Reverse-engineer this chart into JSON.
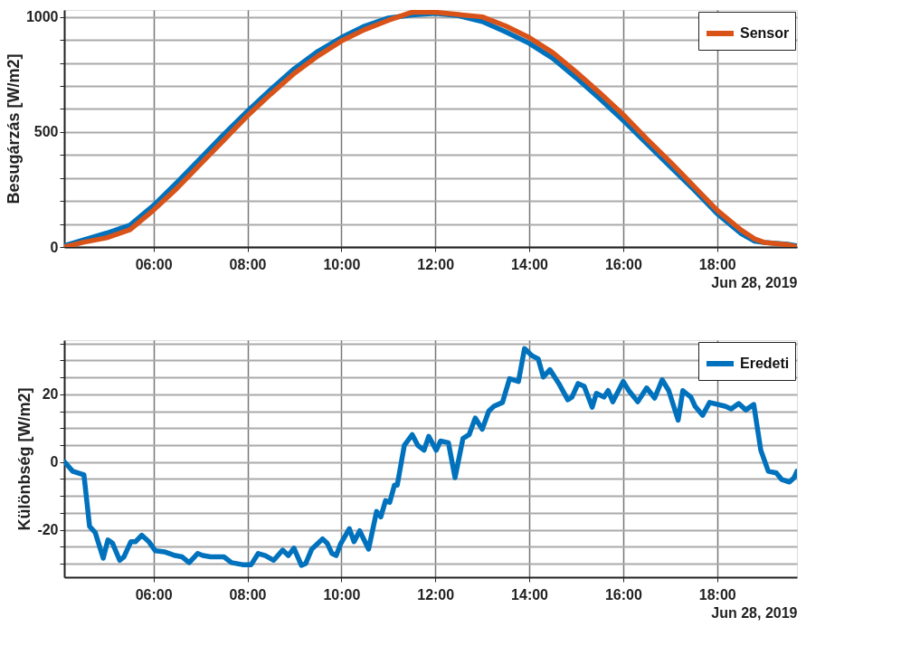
{
  "chart_data": [
    {
      "type": "line",
      "ylabel": "Besugárzás [W/m2]",
      "xlabel": "Jun 28, 2019",
      "legend": "top right",
      "grid": true,
      "x": [
        4.1,
        4.5,
        5,
        5.5,
        6,
        6.5,
        7,
        7.5,
        8,
        8.5,
        9,
        9.5,
        10,
        10.5,
        11,
        11.5,
        12,
        12.5,
        13,
        13.5,
        14,
        14.5,
        15,
        15.5,
        16,
        16.5,
        17,
        17.5,
        18,
        18.5,
        18.8,
        19,
        19.5,
        19.7
      ],
      "series": [
        {
          "color": "#0072bd",
          "values": [
            5,
            30,
            60,
            95,
            180,
            280,
            385,
            490,
            590,
            685,
            775,
            850,
            910,
            960,
            995,
            1008,
            1015,
            1005,
            980,
            935,
            885,
            820,
            735,
            645,
            550,
            450,
            350,
            250,
            145,
            60,
            25,
            20,
            12,
            5
          ]
        },
        {
          "name": "Sensor",
          "color": "#d95319",
          "values": [
            0,
            20,
            40,
            75,
            160,
            255,
            360,
            465,
            570,
            665,
            755,
            830,
            895,
            945,
            985,
            1020,
            1020,
            1010,
            1000,
            960,
            910,
            845,
            760,
            670,
            575,
            470,
            370,
            265,
            160,
            75,
            35,
            20,
            10,
            0
          ]
        }
      ],
      "xlim": [
        4.1,
        19.7
      ],
      "xticks": [
        {
          "value": 6,
          "label": "06:00"
        },
        {
          "value": 8,
          "label": "08:00"
        },
        {
          "value": 10,
          "label": "10:00"
        },
        {
          "value": 12,
          "label": "12:00"
        },
        {
          "value": 14,
          "label": "14:00"
        },
        {
          "value": 16,
          "label": "16:00"
        },
        {
          "value": 18,
          "label": "18:00"
        }
      ],
      "ylim": [
        0,
        1030
      ],
      "yticks": [
        0,
        {
          "value": 100,
          "label": null
        },
        {
          "value": 200,
          "label": null
        },
        {
          "value": 300,
          "label": null
        },
        {
          "value": 400,
          "label": null
        },
        500,
        {
          "value": 600,
          "label": null
        },
        {
          "value": 700,
          "label": null
        },
        {
          "value": 800,
          "label": null
        },
        {
          "value": 900,
          "label": null
        },
        1000
      ]
    },
    {
      "type": "line",
      "ylabel": "Különbség [W/m2]",
      "xlabel": "Jun 28, 2019",
      "legend": "top right",
      "grid": true,
      "x": [
        4.11,
        4.28,
        4.52,
        4.64,
        4.76,
        4.93,
        5.03,
        5.13,
        5.28,
        5.37,
        5.52,
        5.62,
        5.75,
        5.9,
        6.04,
        6.23,
        6.46,
        6.61,
        6.76,
        6.94,
        7.05,
        7.22,
        7.5,
        7.66,
        7.9,
        8.08,
        8.23,
        8.38,
        8.56,
        8.75,
        8.87,
        8.99,
        9.15,
        9.24,
        9.37,
        9.6,
        9.7,
        9.8,
        9.89,
        9.98,
        10.17,
        10.27,
        10.39,
        10.58,
        10.75,
        10.84,
        10.94,
        11.03,
        11.13,
        11.19,
        11.34,
        11.51,
        11.63,
        11.76,
        11.86,
        12.02,
        12.11,
        12.28,
        12.42,
        12.59,
        12.72,
        12.85,
        13.0,
        13.14,
        13.25,
        13.43,
        13.58,
        13.77,
        13.9,
        14.06,
        14.19,
        14.3,
        14.44,
        14.63,
        14.82,
        14.91,
        15.04,
        15.17,
        15.34,
        15.43,
        15.59,
        15.68,
        15.78,
        16.0,
        16.12,
        16.31,
        16.5,
        16.67,
        16.83,
        16.97,
        17.17,
        17.27,
        17.44,
        17.53,
        17.69,
        17.84,
        18.17,
        18.3,
        18.46,
        18.61,
        18.78,
        18.93,
        19.09,
        19.26,
        19.37,
        19.54,
        19.64,
        19.7
      ],
      "series": [
        {
          "name": "Eredeti",
          "color": "#0072bd",
          "values": [
            0,
            -2.7,
            -3.8,
            -19,
            -20.8,
            -28.4,
            -23,
            -24,
            -29,
            -28,
            -23.5,
            -23.5,
            -21.6,
            -23.5,
            -26.2,
            -26.5,
            -27.6,
            -28,
            -29.7,
            -27,
            -27.6,
            -28,
            -28,
            -29.7,
            -30.3,
            -30.3,
            -27,
            -27.6,
            -29,
            -26,
            -27.6,
            -25.4,
            -30.5,
            -30,
            -25.7,
            -22.7,
            -24,
            -27,
            -27.6,
            -24.3,
            -19.7,
            -23.5,
            -20.3,
            -25.7,
            -14.6,
            -16.2,
            -11.4,
            -11.9,
            -6.8,
            -6.8,
            4.9,
            8.1,
            4.9,
            3.5,
            7.6,
            3.5,
            6.2,
            5.7,
            -4.6,
            7.0,
            8.1,
            13,
            9.7,
            15.1,
            16.5,
            17.6,
            24.6,
            23.8,
            33.5,
            31.4,
            30.5,
            25.1,
            27.3,
            23.2,
            18.4,
            19.2,
            23.2,
            22.4,
            16.2,
            20.3,
            19.2,
            21.1,
            17.8,
            23.8,
            21.1,
            17.8,
            21.9,
            18.9,
            24.3,
            21.1,
            12.4,
            21.1,
            19.2,
            16.5,
            13.8,
            17.6,
            16.5,
            15.7,
            17.3,
            15.4,
            17,
            3.5,
            -2.7,
            -3.2,
            -5.1,
            -5.9,
            -4.6,
            -2.7
          ]
        }
      ],
      "xlim": [
        4.1,
        19.7
      ],
      "xticks": [
        {
          "value": 6,
          "label": "06:00"
        },
        {
          "value": 8,
          "label": "08:00"
        },
        {
          "value": 10,
          "label": "10:00"
        },
        {
          "value": 12,
          "label": "12:00"
        },
        {
          "value": 14,
          "label": "14:00"
        },
        {
          "value": 16,
          "label": "16:00"
        },
        {
          "value": 18,
          "label": "18:00"
        }
      ],
      "ylim": [
        -34,
        36
      ],
      "yticks": [
        {
          "value": -30,
          "label": null
        },
        {
          "value": -25,
          "label": null
        },
        -20,
        {
          "value": -15,
          "label": null
        },
        {
          "value": -10,
          "label": null
        },
        {
          "value": -5,
          "label": null
        },
        0,
        {
          "value": 5,
          "label": null
        },
        {
          "value": 10,
          "label": null
        },
        {
          "value": 15,
          "label": null
        },
        20,
        {
          "value": 25,
          "label": null
        },
        {
          "value": 30,
          "label": null
        },
        {
          "value": 35,
          "label": null
        }
      ]
    }
  ]
}
